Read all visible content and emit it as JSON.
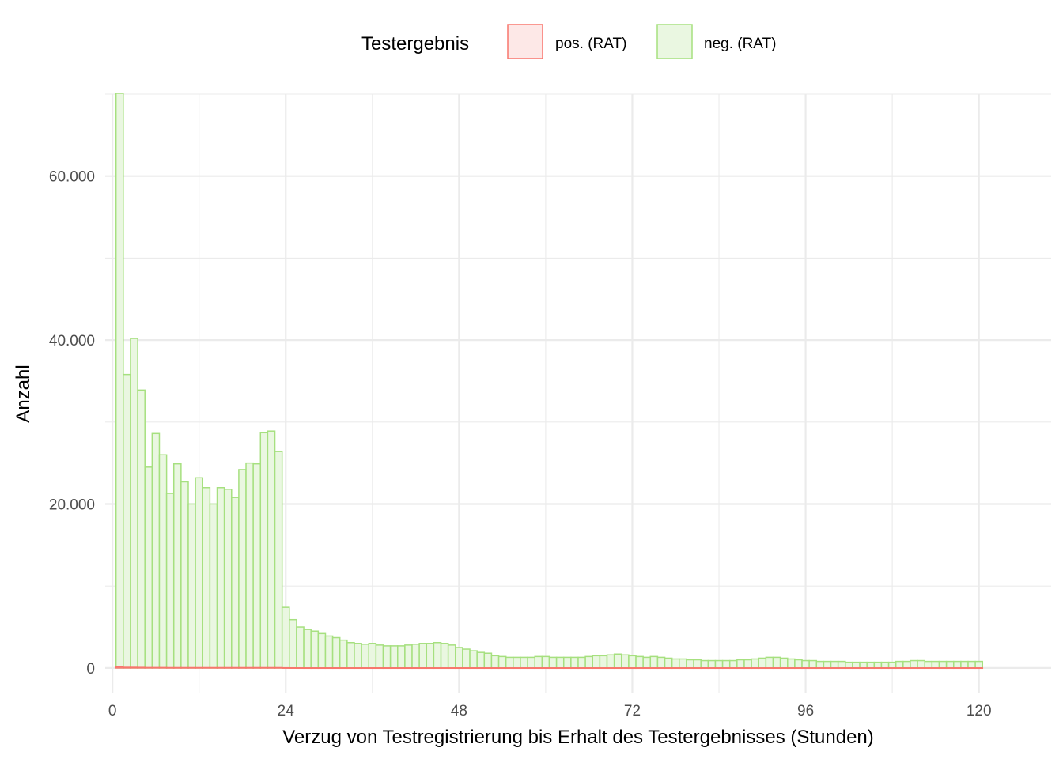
{
  "chart_data": {
    "type": "bar",
    "xlabel": "Verzug von Testregistrierung bis Erhalt des Testergebnisses (Stunden)",
    "ylabel": "Anzahl",
    "xlim": [
      -1,
      130
    ],
    "ylim": [
      -3000,
      70000
    ],
    "x_ticks": [
      0,
      24,
      48,
      72,
      96,
      120
    ],
    "x_tick_labels": [
      "0",
      "24",
      "48",
      "72",
      "96",
      "120"
    ],
    "y_ticks": [
      0,
      20000,
      40000,
      60000
    ],
    "y_tick_labels": [
      "0",
      "20.000",
      "40.000",
      "60.000"
    ],
    "grid": true,
    "legend": {
      "title": "Testergebnis",
      "position": "top",
      "entries": [
        {
          "label": "pos. (RAT)",
          "fill": "#fde8e7",
          "stroke": "#f8766d"
        },
        {
          "label": "neg. (RAT)",
          "fill": "#eaf7e1",
          "stroke": "#a6e07f"
        }
      ]
    },
    "bin_width": 1,
    "series": [
      {
        "name": "pos. (RAT)",
        "x": [
          1,
          2,
          3,
          4,
          5,
          6,
          7,
          8,
          9,
          10,
          11,
          12,
          13,
          14,
          15,
          16,
          17,
          18,
          19,
          20,
          21,
          22,
          23,
          24,
          25,
          26,
          27,
          28,
          29,
          30,
          31,
          32,
          33,
          34,
          35,
          36,
          37,
          38,
          39,
          40,
          41,
          42,
          43,
          44,
          45,
          46,
          47,
          48,
          49,
          50,
          51,
          52,
          53,
          54,
          55,
          56,
          57,
          58,
          59,
          60,
          61,
          62,
          63,
          64,
          65,
          66,
          67,
          68,
          69,
          70,
          71,
          72,
          73,
          74,
          75,
          76,
          77,
          78,
          79,
          80,
          81,
          82,
          83,
          84,
          85,
          86,
          87,
          88,
          89,
          90,
          91,
          92,
          93,
          94,
          95,
          96,
          97,
          98,
          99,
          100,
          101,
          102,
          103,
          104,
          105,
          106,
          107,
          108,
          109,
          110,
          111,
          112,
          113,
          114,
          115,
          116,
          117,
          118,
          119,
          120
        ],
        "values": [
          150,
          80,
          80,
          70,
          50,
          50,
          50,
          40,
          40,
          40,
          40,
          40,
          40,
          40,
          40,
          40,
          40,
          40,
          40,
          40,
          40,
          40,
          40,
          20,
          15,
          12,
          10,
          10,
          10,
          10,
          10,
          10,
          10,
          10,
          10,
          10,
          10,
          10,
          10,
          10,
          10,
          10,
          10,
          10,
          10,
          10,
          10,
          10,
          10,
          10,
          10,
          10,
          10,
          10,
          10,
          10,
          10,
          10,
          10,
          10,
          10,
          10,
          10,
          10,
          10,
          10,
          10,
          10,
          10,
          10,
          10,
          10,
          10,
          10,
          10,
          10,
          10,
          10,
          10,
          10,
          10,
          10,
          10,
          10,
          10,
          10,
          10,
          10,
          10,
          10,
          10,
          10,
          10,
          10,
          10,
          10,
          10,
          10,
          10,
          10,
          10,
          10,
          10,
          10,
          10,
          10,
          10,
          10,
          10,
          10,
          10,
          10,
          10,
          10,
          10,
          10,
          10,
          10,
          10,
          10
        ]
      },
      {
        "name": "neg. (RAT)",
        "x": [
          1,
          2,
          3,
          4,
          5,
          6,
          7,
          8,
          9,
          10,
          11,
          12,
          13,
          14,
          15,
          16,
          17,
          18,
          19,
          20,
          21,
          22,
          23,
          24,
          25,
          26,
          27,
          28,
          29,
          30,
          31,
          32,
          33,
          34,
          35,
          36,
          37,
          38,
          39,
          40,
          41,
          42,
          43,
          44,
          45,
          46,
          47,
          48,
          49,
          50,
          51,
          52,
          53,
          54,
          55,
          56,
          57,
          58,
          59,
          60,
          61,
          62,
          63,
          64,
          65,
          66,
          67,
          68,
          69,
          70,
          71,
          72,
          73,
          74,
          75,
          76,
          77,
          78,
          79,
          80,
          81,
          82,
          83,
          84,
          85,
          86,
          87,
          88,
          89,
          90,
          91,
          92,
          93,
          94,
          95,
          96,
          97,
          98,
          99,
          100,
          101,
          102,
          103,
          104,
          105,
          106,
          107,
          108,
          109,
          110,
          111,
          112,
          113,
          114,
          115,
          116,
          117,
          118,
          119,
          120
        ],
        "values": [
          70100,
          35800,
          40200,
          33900,
          24500,
          28600,
          26000,
          21300,
          24900,
          22700,
          20000,
          23200,
          22000,
          20000,
          22000,
          21800,
          20800,
          24200,
          25000,
          24900,
          28700,
          28900,
          26400,
          7400,
          5900,
          5000,
          4700,
          4500,
          4200,
          3900,
          3700,
          3400,
          3100,
          3000,
          2900,
          3000,
          2800,
          2700,
          2700,
          2700,
          2800,
          2900,
          3000,
          3000,
          3100,
          3000,
          2800,
          2500,
          2300,
          2100,
          1900,
          1800,
          1500,
          1400,
          1300,
          1300,
          1300,
          1300,
          1400,
          1400,
          1300,
          1300,
          1300,
          1300,
          1300,
          1400,
          1500,
          1500,
          1600,
          1700,
          1600,
          1500,
          1400,
          1300,
          1400,
          1300,
          1200,
          1100,
          1100,
          1000,
          1000,
          900,
          900,
          900,
          900,
          900,
          1000,
          1000,
          1100,
          1200,
          1300,
          1300,
          1200,
          1100,
          1000,
          900,
          900,
          800,
          800,
          800,
          800,
          700,
          700,
          700,
          700,
          700,
          700,
          700,
          800,
          800,
          900,
          900,
          800,
          800,
          800,
          800,
          800,
          800,
          800,
          800
        ]
      }
    ]
  }
}
